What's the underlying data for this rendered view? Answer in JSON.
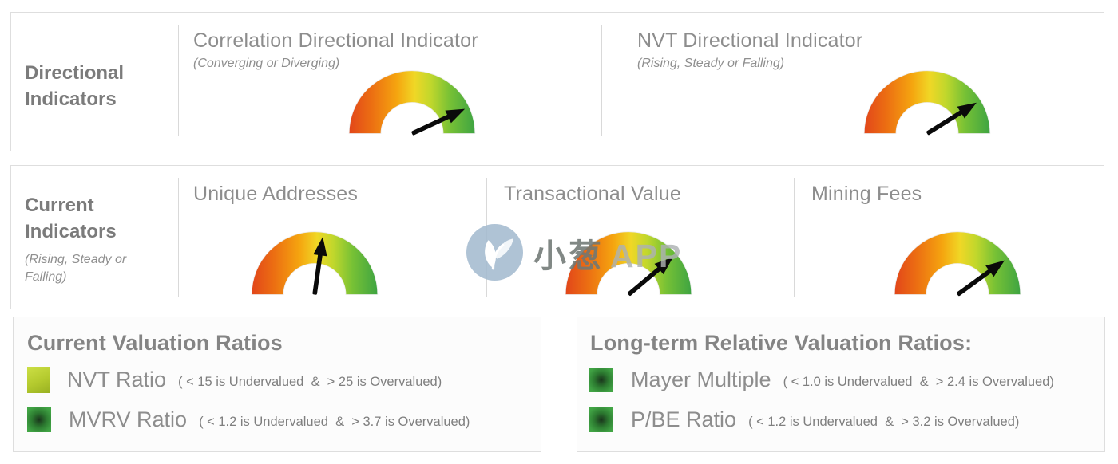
{
  "page": {
    "watermark": {
      "logo_icon": "sprout-bird-icon",
      "text_primary": "小葱",
      "text_secondary": "APP",
      "badge_color": "#a3bace"
    }
  },
  "sections": {
    "directional": {
      "label": "Directional Indicators"
    },
    "current": {
      "label": "Current Indicators",
      "sublabel": "(Rising, Steady or Falling)"
    },
    "current_valuation": {
      "heading": "Current Valuation Ratios",
      "items": [
        {
          "label": "NVT Ratio",
          "threshold": "( < 15 is Undervalued  &  > 25 is Overvalued)",
          "swatch": "yellow-green"
        },
        {
          "label": "MVRV Ratio",
          "threshold": "( < 1.2 is Undervalued  &  > 3.7 is Overvalued)",
          "swatch": "green"
        }
      ]
    },
    "longterm_valuation": {
      "heading": "Long-term Relative Valuation Ratios:",
      "items": [
        {
          "label": "Mayer Multiple",
          "threshold": "( < 1.0 is Undervalued  &  > 2.4 is Overvalued)",
          "swatch": "green"
        },
        {
          "label": "P/BE Ratio",
          "threshold": "( < 1.2 is Undervalued  &  > 3.2 is Overvalued)",
          "swatch": "green"
        }
      ]
    }
  },
  "colors": {
    "gauge_gradient": [
      "#e2461a",
      "#ec6f12",
      "#f5a50f",
      "#f0d726",
      "#c0d72c",
      "#77c135",
      "#3ea442"
    ],
    "needle": "#0a0a0a",
    "swatch_yellow_green": [
      "#ccdf45",
      "#99b122"
    ],
    "swatch_green_center": "#1a351c",
    "swatch_green_edge": "#44aa46",
    "heading_gray": "#848484",
    "text_gray": "#8d8d8d"
  },
  "chart_data": {
    "type": "gauge",
    "scale": {
      "shape": "semicircular donut",
      "left_end": "red (low)",
      "right_end": "green (high)",
      "needle_angle_convention": "degrees above horizontal, 180 = far left (red), 0 = far right (green)"
    },
    "gauges": [
      {
        "group": "Directional Indicators",
        "title": "Correlation Directional Indicator",
        "states": "(Converging or Diverging)",
        "needle_angle_deg": 25,
        "needle_position_fraction": 0.86
      },
      {
        "group": "Directional Indicators",
        "title": "NVT Directional Indicator",
        "states": "(Rising, Steady or Falling)",
        "needle_angle_deg": 32,
        "needle_position_fraction": 0.82
      },
      {
        "group": "Current Indicators",
        "title": "Unique Addresses",
        "states": "(Rising, Steady or Falling)",
        "needle_angle_deg": 82,
        "needle_position_fraction": 0.54
      },
      {
        "group": "Current Indicators",
        "title": "Transactional Value",
        "states": "(Rising, Steady or Falling)",
        "needle_angle_deg": 40,
        "needle_position_fraction": 0.78
      },
      {
        "group": "Current Indicators",
        "title": "Mining Fees",
        "states": "(Rising, Steady or Falling)",
        "needle_angle_deg": 36,
        "needle_position_fraction": 0.8
      }
    ],
    "legends": [
      {
        "heading": "Current Valuation Ratios",
        "items": [
          {
            "label": "NVT Ratio",
            "undervalued_below": 15,
            "overvalued_above": 25
          },
          {
            "label": "MVRV Ratio",
            "undervalued_below": 1.2,
            "overvalued_above": 3.7
          }
        ]
      },
      {
        "heading": "Long-term Relative Valuation Ratios:",
        "items": [
          {
            "label": "Mayer Multiple",
            "undervalued_below": 1.0,
            "overvalued_above": 2.4
          },
          {
            "label": "P/BE Ratio",
            "undervalued_below": 1.2,
            "overvalued_above": 3.2
          }
        ]
      }
    ]
  }
}
